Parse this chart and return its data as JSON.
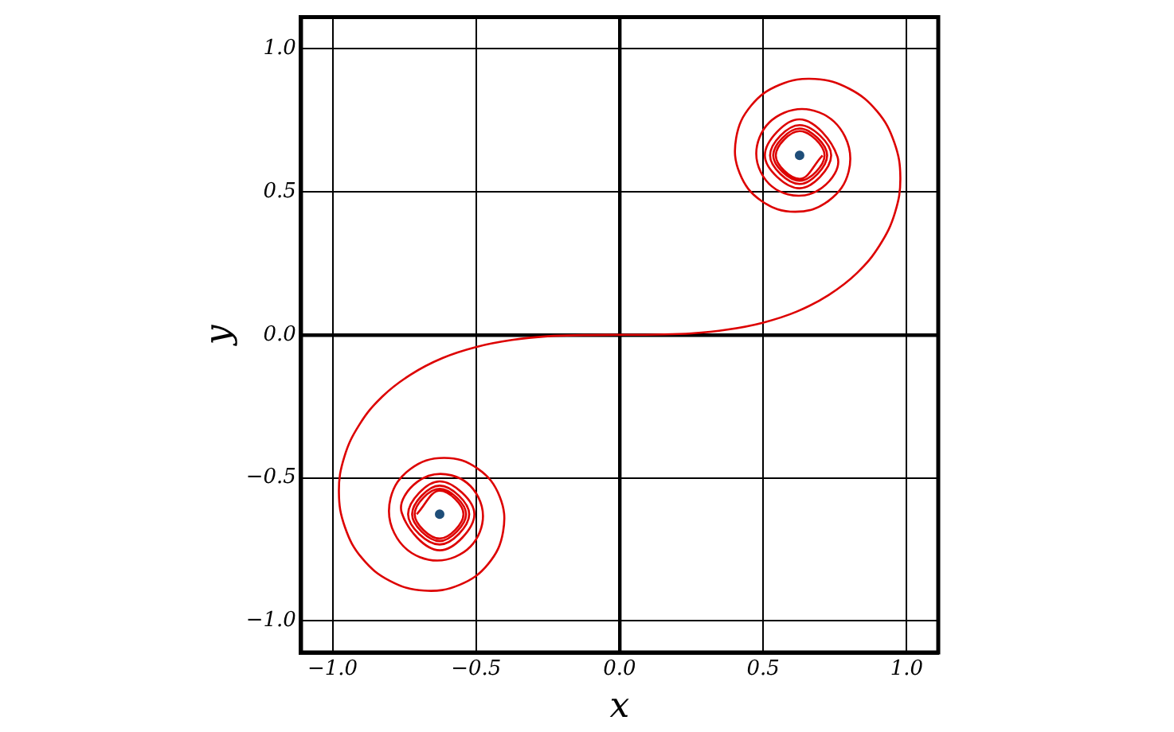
{
  "chart_data": {
    "type": "line",
    "xlabel": "x",
    "ylabel": "y",
    "xlim": [
      -1.11,
      1.11
    ],
    "ylim": [
      -1.11,
      1.11
    ],
    "xticks": [
      {
        "value": -1,
        "label": "−1.0"
      },
      {
        "value": -0.5,
        "label": "−0.5"
      },
      {
        "value": 0,
        "label": "0.0"
      },
      {
        "value": 0.5,
        "label": "0.5"
      },
      {
        "value": 1,
        "label": "1.0"
      }
    ],
    "yticks": [
      {
        "value": -1,
        "label": "−1.0"
      },
      {
        "value": -0.5,
        "label": "−0.5"
      },
      {
        "value": 0,
        "label": "0.0"
      },
      {
        "value": 0.5,
        "label": "0.5"
      },
      {
        "value": 1,
        "label": "1.0"
      }
    ],
    "grid": true,
    "legend": false,
    "marker": "none",
    "line_style": "solid",
    "series": [
      {
        "color": "#dd0000",
        "x": [
          -0.707,
          -0.627,
          -0.544,
          -0.627,
          -0.714,
          -0.627,
          -0.535,
          -0.627,
          -0.723,
          -0.627,
          -0.524,
          -0.627,
          -0.737,
          -0.627,
          -0.506,
          -0.627,
          -0.759,
          -0.705,
          -0.586,
          -0.492,
          -0.487,
          -0.573,
          -0.696,
          -0.785,
          -0.798,
          -0.729,
          -0.612,
          -0.494,
          -0.418,
          -0.406,
          -0.458,
          -0.558,
          -0.681,
          -0.8,
          -0.897,
          -0.957,
          -0.978,
          -0.959,
          -0.906,
          -0.827,
          -0.728,
          -0.617,
          -0.498,
          -0.375,
          -0.251,
          -0.125,
          0,
          0.125,
          0.251,
          0.375,
          0.498,
          0.617,
          0.728,
          0.827,
          0.906,
          0.959,
          0.978,
          0.957,
          0.897,
          0.8,
          0.681,
          0.558,
          0.458,
          0.406,
          0.418,
          0.494,
          0.612,
          0.729,
          0.798,
          0.785,
          0.696,
          0.573,
          0.487,
          0.492,
          0.586,
          0.705,
          0.759,
          0.627,
          0.506,
          0.627,
          0.737,
          0.627,
          0.524,
          0.627,
          0.723,
          0.627,
          0.535,
          0.627,
          0.714,
          0.627,
          0.544,
          0.627,
          0.707
        ],
        "values": [
          -0.627,
          -0.545,
          -0.627,
          -0.712,
          -0.627,
          -0.538,
          -0.627,
          -0.721,
          -0.627,
          -0.527,
          -0.627,
          -0.733,
          -0.627,
          -0.512,
          -0.627,
          -0.753,
          -0.622,
          -0.514,
          -0.491,
          -0.568,
          -0.689,
          -0.776,
          -0.777,
          -0.693,
          -0.571,
          -0.469,
          -0.43,
          -0.468,
          -0.565,
          -0.688,
          -0.801,
          -0.874,
          -0.894,
          -0.86,
          -0.781,
          -0.672,
          -0.549,
          -0.426,
          -0.313,
          -0.216,
          -0.139,
          -0.081,
          -0.042,
          -0.018,
          -0.005,
          -0.001,
          0,
          0.001,
          0.005,
          0.018,
          0.042,
          0.081,
          0.139,
          0.216,
          0.313,
          0.426,
          0.549,
          0.672,
          0.781,
          0.86,
          0.894,
          0.874,
          0.801,
          0.688,
          0.565,
          0.468,
          0.43,
          0.469,
          0.571,
          0.693,
          0.777,
          0.776,
          0.689,
          0.568,
          0.491,
          0.514,
          0.622,
          0.753,
          0.627,
          0.512,
          0.627,
          0.733,
          0.627,
          0.527,
          0.627,
          0.721,
          0.627,
          0.538,
          0.627,
          0.712,
          0.627,
          0.545,
          0.627
        ]
      },
      {
        "type": "scatter",
        "color": "#1f4e79",
        "marker": "circle",
        "x": [
          -0.627,
          0.627
        ],
        "values": [
          -0.627,
          0.627
        ]
      }
    ]
  }
}
